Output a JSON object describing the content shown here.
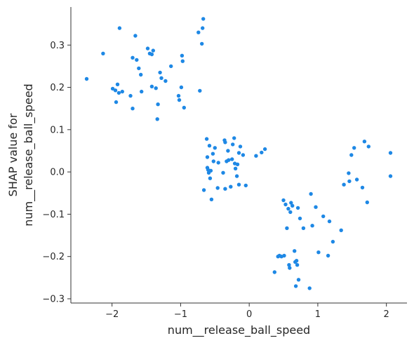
{
  "chart_data": {
    "type": "scatter",
    "title": "",
    "xlabel": "num__release_ball_speed",
    "ylabel_lines": [
      "SHAP value for",
      "num__release_ball_speed"
    ],
    "xlim": [
      -2.6,
      2.3
    ],
    "ylim": [
      -0.31,
      0.39
    ],
    "xticks": [
      -2,
      -1,
      0,
      1,
      2
    ],
    "xtick_labels": [
      "−2",
      "−1",
      "0",
      "1",
      "2"
    ],
    "yticks": [
      -0.3,
      -0.2,
      -0.1,
      0.0,
      0.1,
      0.2,
      0.3
    ],
    "ytick_labels": [
      "−0.3",
      "−0.2",
      "−0.1",
      "0.0",
      "0.1",
      "0.2",
      "0.3"
    ],
    "grid": false,
    "point_color": "#1E88E5",
    "points": [
      {
        "x": -2.37,
        "y": 0.22
      },
      {
        "x": -2.13,
        "y": 0.28
      },
      {
        "x": -1.89,
        "y": 0.34
      },
      {
        "x": -1.99,
        "y": 0.197
      },
      {
        "x": -1.95,
        "y": 0.193
      },
      {
        "x": -1.94,
        "y": 0.165
      },
      {
        "x": -1.92,
        "y": 0.207
      },
      {
        "x": -1.9,
        "y": 0.187
      },
      {
        "x": -1.85,
        "y": 0.19
      },
      {
        "x": -1.73,
        "y": 0.18
      },
      {
        "x": -1.7,
        "y": 0.15
      },
      {
        "x": -1.7,
        "y": 0.27
      },
      {
        "x": -1.66,
        "y": 0.322
      },
      {
        "x": -1.64,
        "y": 0.265
      },
      {
        "x": -1.61,
        "y": 0.245
      },
      {
        "x": -1.58,
        "y": 0.23
      },
      {
        "x": -1.57,
        "y": 0.19
      },
      {
        "x": -1.48,
        "y": 0.292
      },
      {
        "x": -1.45,
        "y": 0.28
      },
      {
        "x": -1.42,
        "y": 0.278
      },
      {
        "x": -1.4,
        "y": 0.287
      },
      {
        "x": -1.42,
        "y": 0.202
      },
      {
        "x": -1.36,
        "y": 0.198
      },
      {
        "x": -1.34,
        "y": 0.125
      },
      {
        "x": -1.33,
        "y": 0.16
      },
      {
        "x": -1.3,
        "y": 0.235
      },
      {
        "x": -1.28,
        "y": 0.222
      },
      {
        "x": -1.22,
        "y": 0.215
      },
      {
        "x": -1.14,
        "y": 0.25
      },
      {
        "x": -1.03,
        "y": 0.18
      },
      {
        "x": -1.02,
        "y": 0.17
      },
      {
        "x": -0.99,
        "y": 0.2
      },
      {
        "x": -0.98,
        "y": 0.275
      },
      {
        "x": -0.97,
        "y": 0.262
      },
      {
        "x": -0.95,
        "y": 0.152
      },
      {
        "x": -0.74,
        "y": 0.33
      },
      {
        "x": -0.72,
        "y": 0.192
      },
      {
        "x": -0.69,
        "y": 0.303
      },
      {
        "x": -0.68,
        "y": 0.34
      },
      {
        "x": -0.67,
        "y": 0.362
      },
      {
        "x": -0.66,
        "y": -0.043
      },
      {
        "x": -0.62,
        "y": 0.078
      },
      {
        "x": -0.61,
        "y": 0.035
      },
      {
        "x": -0.61,
        "y": 0.01
      },
      {
        "x": -0.6,
        "y": 0.005
      },
      {
        "x": -0.59,
        "y": -0.002
      },
      {
        "x": -0.58,
        "y": 0.062
      },
      {
        "x": -0.57,
        "y": -0.015
      },
      {
        "x": -0.56,
        "y": 0.003
      },
      {
        "x": -0.55,
        "y": -0.065
      },
      {
        "x": -0.53,
        "y": 0.043
      },
      {
        "x": -0.52,
        "y": 0.025
      },
      {
        "x": -0.5,
        "y": 0.057
      },
      {
        "x": -0.46,
        "y": -0.038
      },
      {
        "x": -0.45,
        "y": 0.022
      },
      {
        "x": -0.38,
        "y": -0.002
      },
      {
        "x": -0.36,
        "y": 0.075
      },
      {
        "x": -0.35,
        "y": 0.07
      },
      {
        "x": -0.35,
        "y": -0.04
      },
      {
        "x": -0.33,
        "y": 0.025
      },
      {
        "x": -0.31,
        "y": 0.05
      },
      {
        "x": -0.3,
        "y": 0.028
      },
      {
        "x": -0.27,
        "y": -0.035
      },
      {
        "x": -0.25,
        "y": 0.03
      },
      {
        "x": -0.24,
        "y": 0.065
      },
      {
        "x": -0.22,
        "y": 0.08
      },
      {
        "x": -0.21,
        "y": 0.02
      },
      {
        "x": -0.2,
        "y": 0.008
      },
      {
        "x": -0.18,
        "y": -0.01
      },
      {
        "x": -0.17,
        "y": 0.018
      },
      {
        "x": -0.15,
        "y": -0.03
      },
      {
        "x": -0.15,
        "y": 0.045
      },
      {
        "x": -0.13,
        "y": 0.06
      },
      {
        "x": -0.09,
        "y": 0.04
      },
      {
        "x": -0.05,
        "y": -0.032
      },
      {
        "x": 0.1,
        "y": 0.038
      },
      {
        "x": 0.18,
        "y": 0.046
      },
      {
        "x": 0.23,
        "y": 0.054
      },
      {
        "x": 0.37,
        "y": -0.237
      },
      {
        "x": 0.42,
        "y": -0.2
      },
      {
        "x": 0.44,
        "y": -0.198
      },
      {
        "x": 0.47,
        "y": -0.2
      },
      {
        "x": 0.5,
        "y": -0.067
      },
      {
        "x": 0.51,
        "y": -0.198
      },
      {
        "x": 0.53,
        "y": -0.077
      },
      {
        "x": 0.55,
        "y": -0.133
      },
      {
        "x": 0.57,
        "y": -0.087
      },
      {
        "x": 0.58,
        "y": -0.22
      },
      {
        "x": 0.59,
        "y": -0.227
      },
      {
        "x": 0.6,
        "y": -0.095
      },
      {
        "x": 0.61,
        "y": -0.073
      },
      {
        "x": 0.63,
        "y": -0.08
      },
      {
        "x": 0.66,
        "y": -0.187
      },
      {
        "x": 0.67,
        "y": -0.213
      },
      {
        "x": 0.68,
        "y": -0.27
      },
      {
        "x": 0.69,
        "y": -0.21
      },
      {
        "x": 0.7,
        "y": -0.22
      },
      {
        "x": 0.71,
        "y": -0.085
      },
      {
        "x": 0.72,
        "y": -0.255
      },
      {
        "x": 0.74,
        "y": -0.11
      },
      {
        "x": 0.79,
        "y": -0.133
      },
      {
        "x": 0.88,
        "y": -0.275
      },
      {
        "x": 0.9,
        "y": -0.052
      },
      {
        "x": 0.92,
        "y": -0.127
      },
      {
        "x": 0.97,
        "y": -0.083
      },
      {
        "x": 1.01,
        "y": -0.19
      },
      {
        "x": 1.08,
        "y": -0.105
      },
      {
        "x": 1.15,
        "y": -0.198
      },
      {
        "x": 1.17,
        "y": -0.117
      },
      {
        "x": 1.22,
        "y": -0.165
      },
      {
        "x": 1.34,
        "y": -0.138
      },
      {
        "x": 1.38,
        "y": -0.03
      },
      {
        "x": 1.45,
        "y": -0.003
      },
      {
        "x": 1.46,
        "y": -0.022
      },
      {
        "x": 1.49,
        "y": 0.04
      },
      {
        "x": 1.53,
        "y": 0.057
      },
      {
        "x": 1.57,
        "y": -0.018
      },
      {
        "x": 1.65,
        "y": -0.037
      },
      {
        "x": 1.68,
        "y": 0.072
      },
      {
        "x": 1.72,
        "y": -0.072
      },
      {
        "x": 1.74,
        "y": 0.06
      },
      {
        "x": 2.06,
        "y": 0.045
      },
      {
        "x": 2.06,
        "y": -0.01
      }
    ]
  }
}
